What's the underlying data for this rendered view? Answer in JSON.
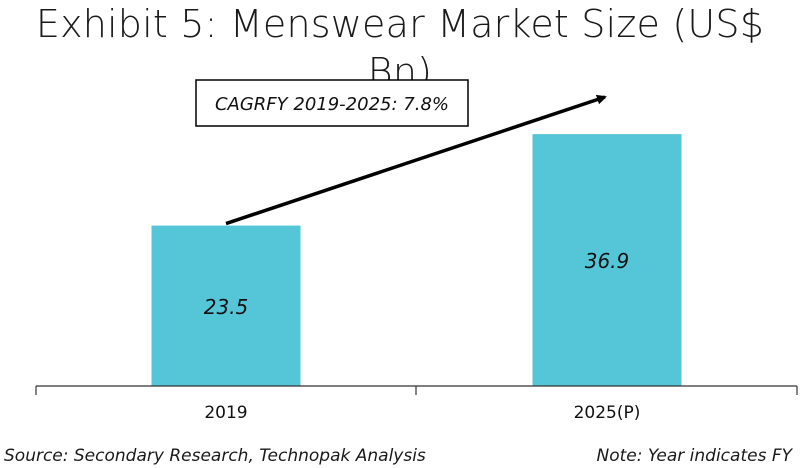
{
  "title": "Exhibit 5: Menswear Market Size (US$ Bn)",
  "footer": {
    "source": "Source: Secondary Research, Technopak Analysis",
    "note": "Note: Year indicates FY"
  },
  "colors": {
    "bar": "#55c5d8",
    "axis": "#333333",
    "text": "#111111"
  },
  "chart_data": {
    "type": "bar",
    "title": "Exhibit 5: Menswear Market Size (US$ Bn)",
    "categories": [
      "2019",
      "2025(P)"
    ],
    "values": [
      23.5,
      36.9
    ],
    "xlabel": "",
    "ylabel": "",
    "ylim": [
      0,
      46
    ],
    "grid": false,
    "legend": "none",
    "annotation": {
      "text": "CAGRFY 2019-2025: 7.8%",
      "type": "arrow",
      "from": "2019",
      "to": "2025(P)"
    }
  }
}
